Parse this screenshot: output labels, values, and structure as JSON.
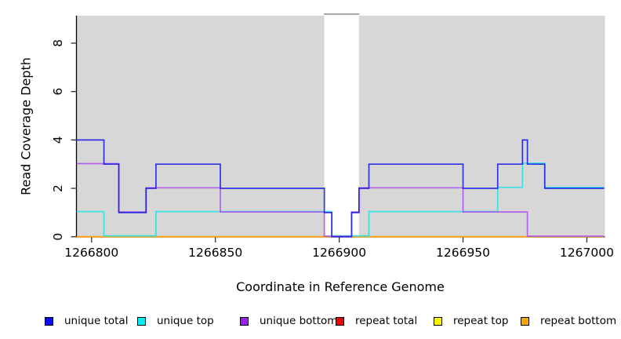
{
  "figure": {
    "background": "#ffffff",
    "plot_background": "#d7d7d7",
    "axis_color": "#000000",
    "tick_color": "#303030"
  },
  "chart_data": {
    "type": "line",
    "subtype": "step",
    "title": "",
    "xlabel": "Coordinate in Reference Genome",
    "ylabel": "Read Coverage Depth",
    "xlim": [
      1266794,
      1267007
    ],
    "ylim": [
      0,
      9.15
    ],
    "x_ticks": [
      1266800,
      1266850,
      1266900,
      1266950,
      1267000
    ],
    "y_ticks": [
      0,
      2,
      4,
      6,
      8
    ],
    "grid": false,
    "legend_position": "bottom",
    "masked_region": {
      "start": 1266894,
      "end": 1266908,
      "fill": "#ffffff",
      "border": "#8c8c8c"
    },
    "series": [
      {
        "name": "unique total",
        "color": "#1a1ae6",
        "steps": [
          [
            1266794,
            4
          ],
          [
            1266805,
            3
          ],
          [
            1266811,
            1
          ],
          [
            1266822,
            2
          ],
          [
            1266826,
            3
          ],
          [
            1266852,
            2
          ],
          [
            1266894,
            1
          ],
          [
            1266897,
            0
          ],
          [
            1266905,
            1
          ],
          [
            1266908,
            2
          ],
          [
            1266912,
            3
          ],
          [
            1266950,
            2
          ],
          [
            1266964,
            3
          ],
          [
            1266974,
            4
          ],
          [
            1266976,
            3
          ],
          [
            1266983,
            2
          ],
          [
            1267007,
            2
          ]
        ]
      },
      {
        "name": "unique top",
        "color": "#25e2e2",
        "steps": [
          [
            1266794,
            1
          ],
          [
            1266805,
            0
          ],
          [
            1266826,
            1
          ],
          [
            1266897,
            0
          ],
          [
            1266912,
            1
          ],
          [
            1266964,
            2
          ],
          [
            1266974,
            3
          ],
          [
            1266983,
            2
          ],
          [
            1267007,
            2
          ]
        ]
      },
      {
        "name": "unique bottom",
        "color": "#ad52ec",
        "steps": [
          [
            1266794,
            3
          ],
          [
            1266811,
            1
          ],
          [
            1266822,
            2
          ],
          [
            1266852,
            1
          ],
          [
            1266894,
            0
          ],
          [
            1266905,
            1
          ],
          [
            1266908,
            2
          ],
          [
            1266950,
            1
          ],
          [
            1266976,
            0
          ],
          [
            1267007,
            0
          ]
        ]
      },
      {
        "name": "repeat total",
        "color": "#ee0e0e",
        "steps": [
          [
            1266794,
            0
          ],
          [
            1267007,
            0
          ]
        ]
      },
      {
        "name": "repeat top",
        "color": "#fdf500",
        "steps": [
          [
            1266794,
            0
          ],
          [
            1267007,
            0
          ]
        ]
      },
      {
        "name": "repeat bottom",
        "color": "#ff9e06",
        "steps": [
          [
            1266794,
            0
          ],
          [
            1267007,
            0
          ]
        ]
      }
    ],
    "legend": [
      {
        "label": "unique total",
        "color": "#0d0df0"
      },
      {
        "label": "unique top",
        "color": "#00f0f0"
      },
      {
        "label": "unique bottom",
        "color": "#9b1ff0"
      },
      {
        "label": "repeat total",
        "color": "#f00000"
      },
      {
        "label": "repeat top",
        "color": "#fdf500"
      },
      {
        "label": "repeat bottom",
        "color": "#ffa405"
      }
    ]
  }
}
